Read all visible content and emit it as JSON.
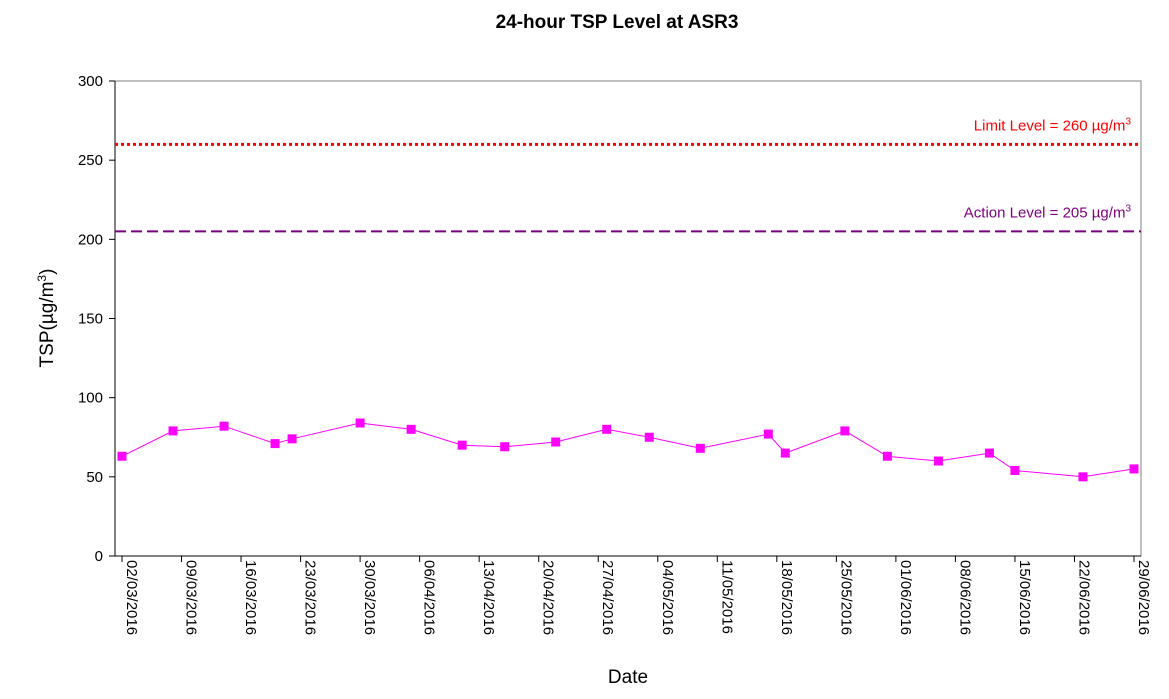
{
  "chart_data": {
    "type": "line",
    "title": "24-hour TSP Level at ASR3",
    "xlabel": "Date",
    "ylabel": {
      "main": "TSP(",
      "unit": "µg/m",
      "sup": "3",
      "close": ")"
    },
    "ylim": [
      0,
      300
    ],
    "yticks": [
      0,
      50,
      100,
      150,
      200,
      250,
      300
    ],
    "grid": false,
    "x_range": [
      "02/03/2016",
      "29/06/2016"
    ],
    "xticks": [
      "02/03/2016",
      "09/03/2016",
      "16/03/2016",
      "23/03/2016",
      "30/03/2016",
      "06/04/2016",
      "13/04/2016",
      "20/04/2016",
      "27/04/2016",
      "04/05/2016",
      "11/05/2016",
      "18/05/2016",
      "25/05/2016",
      "01/06/2016",
      "08/06/2016",
      "15/06/2016",
      "22/06/2016",
      "29/06/2016"
    ],
    "series": [
      {
        "color": "#ff00ff",
        "marker": "square",
        "x": [
          "02/03/2016",
          "08/03/2016",
          "14/03/2016",
          "20/03/2016",
          "22/03/2016",
          "30/03/2016",
          "05/04/2016",
          "11/04/2016",
          "16/04/2016",
          "22/04/2016",
          "28/04/2016",
          "03/05/2016",
          "09/05/2016",
          "17/05/2016",
          "19/05/2016",
          "26/05/2016",
          "31/05/2016",
          "06/06/2016",
          "12/06/2016",
          "15/06/2016",
          "23/06/2016",
          "29/06/2016"
        ],
        "y": [
          63,
          79,
          82,
          71,
          74,
          84,
          80,
          70,
          69,
          72,
          80,
          75,
          68,
          77,
          65,
          79,
          63,
          60,
          65,
          54,
          50,
          55
        ]
      }
    ],
    "reference_lines": [
      {
        "value": 260,
        "color": "#ff0000",
        "style": "dotted",
        "label": {
          "text": "Limit Level = 260 µg/m",
          "sup": "3"
        }
      },
      {
        "value": 205,
        "color": "#800080",
        "style": "dashed",
        "label": {
          "text": "Action Level = 205 µg/m",
          "sup": "3"
        }
      }
    ]
  }
}
